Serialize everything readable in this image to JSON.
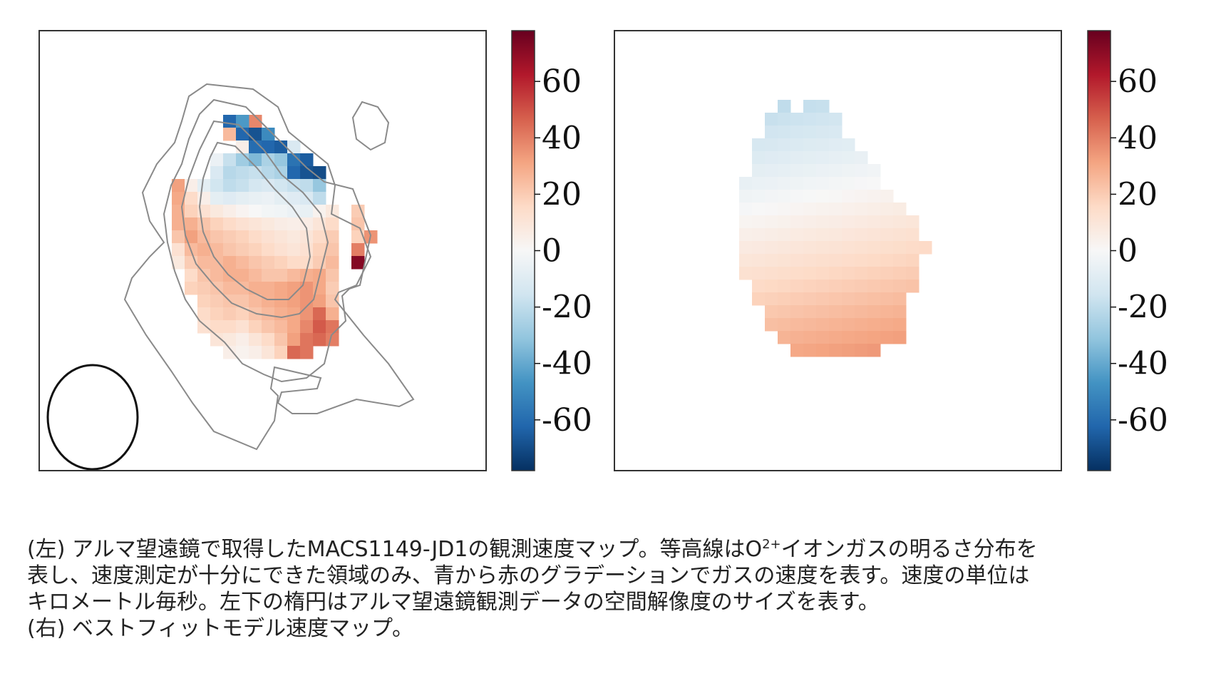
{
  "chart_data": [
    {
      "type": "heatmap",
      "panel": "left",
      "title": "",
      "description_visible": "observed velocity map with contours and beam ellipse",
      "colorbar": {
        "ticks": [
          "60",
          "40",
          "20",
          "0",
          "-20",
          "-40",
          "-60"
        ],
        "vmin": -78,
        "vmax": 78,
        "colormap": "RdBu_r"
      },
      "grid": {
        "rows": 22,
        "cols": 17
      },
      "cells": [
        [
          1,
          6,
          38
        ],
        [
          1,
          4,
          -62
        ],
        [
          1,
          5,
          -45
        ],
        [
          2,
          4,
          25
        ],
        [
          2,
          5,
          -62
        ],
        [
          2,
          6,
          -68
        ],
        [
          2,
          7,
          -50
        ],
        [
          3,
          5,
          5
        ],
        [
          3,
          6,
          -60
        ],
        [
          3,
          7,
          -62
        ],
        [
          3,
          8,
          -65
        ],
        [
          3,
          9,
          -12
        ],
        [
          4,
          3,
          -5
        ],
        [
          4,
          4,
          -18
        ],
        [
          4,
          5,
          -28
        ],
        [
          4,
          6,
          -35
        ],
        [
          4,
          7,
          -25
        ],
        [
          4,
          8,
          -30
        ],
        [
          4,
          9,
          -58
        ],
        [
          4,
          10,
          -65
        ],
        [
          5,
          3,
          -12
        ],
        [
          5,
          4,
          -22
        ],
        [
          5,
          5,
          -20
        ],
        [
          5,
          6,
          -18
        ],
        [
          5,
          7,
          -22
        ],
        [
          5,
          8,
          -25
        ],
        [
          5,
          9,
          -62
        ],
        [
          5,
          10,
          -68
        ],
        [
          5,
          11,
          -70
        ],
        [
          6,
          0,
          32
        ],
        [
          6,
          1,
          5
        ],
        [
          6,
          2,
          -8
        ],
        [
          6,
          3,
          -15
        ],
        [
          6,
          4,
          -20
        ],
        [
          6,
          5,
          -18
        ],
        [
          6,
          6,
          -14
        ],
        [
          6,
          7,
          -12
        ],
        [
          6,
          8,
          -15
        ],
        [
          6,
          9,
          -18
        ],
        [
          6,
          10,
          -20
        ],
        [
          6,
          11,
          -30
        ],
        [
          7,
          0,
          30
        ],
        [
          7,
          1,
          15
        ],
        [
          7,
          2,
          5
        ],
        [
          7,
          3,
          -8
        ],
        [
          7,
          4,
          -10
        ],
        [
          7,
          5,
          -8
        ],
        [
          7,
          6,
          -6
        ],
        [
          7,
          7,
          -5
        ],
        [
          7,
          8,
          -8
        ],
        [
          7,
          9,
          -10
        ],
        [
          7,
          10,
          -12
        ],
        [
          7,
          11,
          -20
        ],
        [
          8,
          0,
          28
        ],
        [
          8,
          1,
          18
        ],
        [
          8,
          2,
          12
        ],
        [
          8,
          3,
          8
        ],
        [
          8,
          4,
          5
        ],
        [
          8,
          5,
          2
        ],
        [
          8,
          6,
          0
        ],
        [
          8,
          7,
          -2
        ],
        [
          8,
          8,
          -3
        ],
        [
          8,
          9,
          -5
        ],
        [
          8,
          10,
          -6
        ],
        [
          8,
          11,
          3
        ],
        [
          8,
          12,
          8
        ],
        [
          8,
          14,
          20
        ],
        [
          9,
          0,
          28
        ],
        [
          9,
          1,
          28
        ],
        [
          9,
          2,
          22
        ],
        [
          9,
          3,
          18
        ],
        [
          9,
          4,
          15
        ],
        [
          9,
          5,
          12
        ],
        [
          9,
          6,
          10
        ],
        [
          9,
          7,
          8
        ],
        [
          9,
          8,
          6
        ],
        [
          9,
          9,
          5
        ],
        [
          9,
          10,
          6
        ],
        [
          9,
          11,
          10
        ],
        [
          9,
          12,
          15
        ],
        [
          9,
          14,
          22
        ],
        [
          10,
          0,
          22
        ],
        [
          10,
          1,
          32
        ],
        [
          10,
          2,
          25
        ],
        [
          10,
          3,
          22
        ],
        [
          10,
          4,
          20
        ],
        [
          10,
          5,
          18
        ],
        [
          10,
          6,
          15
        ],
        [
          10,
          7,
          12
        ],
        [
          10,
          8,
          10
        ],
        [
          10,
          9,
          8
        ],
        [
          10,
          10,
          10
        ],
        [
          10,
          11,
          15
        ],
        [
          10,
          12,
          20
        ],
        [
          10,
          14,
          18
        ],
        [
          10,
          15,
          35
        ],
        [
          11,
          0,
          12
        ],
        [
          11,
          1,
          25
        ],
        [
          11,
          2,
          28
        ],
        [
          11,
          3,
          25
        ],
        [
          11,
          4,
          22
        ],
        [
          11,
          5,
          20
        ],
        [
          11,
          6,
          18
        ],
        [
          11,
          7,
          15
        ],
        [
          11,
          8,
          12
        ],
        [
          11,
          9,
          10
        ],
        [
          11,
          10,
          12
        ],
        [
          11,
          11,
          18
        ],
        [
          11,
          12,
          22
        ],
        [
          11,
          14,
          40
        ],
        [
          12,
          0,
          8
        ],
        [
          12,
          1,
          20
        ],
        [
          12,
          2,
          25
        ],
        [
          12,
          3,
          25
        ],
        [
          12,
          4,
          28
        ],
        [
          12,
          5,
          25
        ],
        [
          12,
          6,
          22
        ],
        [
          12,
          7,
          20
        ],
        [
          12,
          8,
          18
        ],
        [
          12,
          9,
          15
        ],
        [
          12,
          10,
          15
        ],
        [
          12,
          11,
          20
        ],
        [
          12,
          12,
          25
        ],
        [
          12,
          14,
          72
        ],
        [
          13,
          1,
          15
        ],
        [
          13,
          2,
          22
        ],
        [
          13,
          3,
          25
        ],
        [
          13,
          4,
          28
        ],
        [
          13,
          5,
          28
        ],
        [
          13,
          6,
          25
        ],
        [
          13,
          7,
          22
        ],
        [
          13,
          8,
          22
        ],
        [
          13,
          9,
          25
        ],
        [
          13,
          10,
          28
        ],
        [
          13,
          11,
          30
        ],
        [
          13,
          12,
          22
        ],
        [
          14,
          1,
          18
        ],
        [
          14,
          2,
          20
        ],
        [
          14,
          3,
          22
        ],
        [
          14,
          4,
          25
        ],
        [
          14,
          5,
          25
        ],
        [
          14,
          6,
          28
        ],
        [
          14,
          7,
          28
        ],
        [
          14,
          8,
          30
        ],
        [
          14,
          9,
          32
        ],
        [
          14,
          10,
          35
        ],
        [
          14,
          11,
          30
        ],
        [
          14,
          12,
          20
        ],
        [
          15,
          2,
          18
        ],
        [
          15,
          3,
          20
        ],
        [
          15,
          4,
          22
        ],
        [
          15,
          5,
          22
        ],
        [
          15,
          6,
          25
        ],
        [
          15,
          7,
          28
        ],
        [
          15,
          8,
          30
        ],
        [
          15,
          9,
          32
        ],
        [
          15,
          10,
          35
        ],
        [
          15,
          11,
          32
        ],
        [
          15,
          12,
          22
        ],
        [
          16,
          2,
          15
        ],
        [
          16,
          3,
          18
        ],
        [
          16,
          4,
          20
        ],
        [
          16,
          5,
          18
        ],
        [
          16,
          6,
          22
        ],
        [
          16,
          7,
          25
        ],
        [
          16,
          8,
          28
        ],
        [
          16,
          9,
          30
        ],
        [
          16,
          10,
          35
        ],
        [
          16,
          11,
          45
        ],
        [
          16,
          12,
          28
        ],
        [
          17,
          2,
          12
        ],
        [
          17,
          3,
          15
        ],
        [
          17,
          4,
          15
        ],
        [
          17,
          5,
          12
        ],
        [
          17,
          6,
          18
        ],
        [
          17,
          7,
          22
        ],
        [
          17,
          8,
          25
        ],
        [
          17,
          9,
          30
        ],
        [
          17,
          10,
          38
        ],
        [
          17,
          11,
          48
        ],
        [
          17,
          12,
          42
        ],
        [
          18,
          3,
          10
        ],
        [
          18,
          4,
          8
        ],
        [
          18,
          5,
          5
        ],
        [
          18,
          6,
          10
        ],
        [
          18,
          7,
          15
        ],
        [
          18,
          8,
          22
        ],
        [
          18,
          9,
          32
        ],
        [
          18,
          10,
          42
        ],
        [
          18,
          11,
          45
        ],
        [
          18,
          12,
          40
        ],
        [
          19,
          4,
          5
        ],
        [
          19,
          5,
          3
        ],
        [
          19,
          6,
          5
        ],
        [
          19,
          7,
          10
        ],
        [
          19,
          8,
          18
        ],
        [
          19,
          9,
          45
        ],
        [
          19,
          10,
          42
        ]
      ]
    },
    {
      "type": "heatmap",
      "panel": "right",
      "title": "",
      "description_visible": "best-fit model velocity map",
      "colorbar": {
        "ticks": [
          "60",
          "40",
          "20",
          "0",
          "-20",
          "-40",
          "-60"
        ],
        "vmin": -78,
        "vmax": 78,
        "colormap": "RdBu_r"
      },
      "grid": {
        "rows": 22,
        "cols": 17
      }
    }
  ],
  "caption": {
    "line1_a": "(左) アルマ望遠鏡で取得したMACS1149-JD1の観測速度マップ。等高線はO",
    "line1_sup": "2+",
    "line1_b": "イオンガスの明るさ分布を",
    "line2": "表し、速度測定が十分にできた領域のみ、青から赤のグラデーションでガスの速度を表す。速度の単位は",
    "line3": "キロメートル毎秒。左下の楕円はアルマ望遠鏡観測データの空間解像度のサイズを表す。",
    "line4": "(右) ベストフィットモデル速度マップ。"
  },
  "colors": {
    "frame": "#333333",
    "contour": "#8a8a8a",
    "beam": "#111111"
  }
}
